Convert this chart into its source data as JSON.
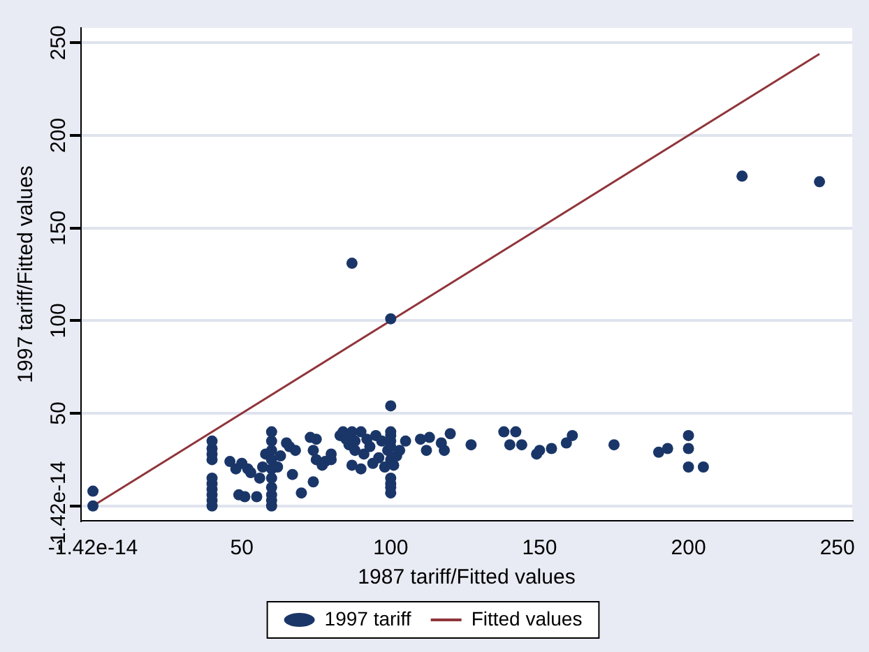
{
  "chart_data": {
    "type": "scatter",
    "xlabel": "1987 tariff/Fitted values",
    "ylabel": "1997 tariff/Fitted values",
    "xlim": [
      -4,
      255
    ],
    "xticks": [
      -1.42e-14,
      50,
      100,
      150,
      200,
      250
    ],
    "ylim": [
      -8,
      258
    ],
    "yticks": [
      -1.42e-14,
      50,
      100,
      150,
      200,
      250
    ],
    "grid": "y",
    "legend": "bottom",
    "marker": "circle",
    "series": [
      {
        "name": "1997 tariff",
        "color": "#1a3668",
        "type": "scatter",
        "x": [
          0,
          0,
          40,
          40,
          40,
          40,
          40,
          40,
          40,
          40,
          40,
          40,
          46,
          48,
          49,
          50,
          51,
          52,
          53,
          55,
          56,
          57,
          58,
          60,
          60,
          60,
          60,
          60,
          60,
          60,
          60,
          60,
          60,
          62,
          63,
          65,
          66,
          67,
          68,
          70,
          73,
          74,
          75,
          74,
          75,
          77,
          78,
          80,
          80,
          83,
          84,
          85,
          86,
          87,
          88,
          88,
          87,
          87,
          90,
          90,
          91,
          92,
          93,
          94,
          95,
          96,
          97,
          98,
          99,
          100,
          100,
          100,
          100,
          100,
          100,
          100,
          100,
          100,
          100,
          100,
          101,
          102,
          103,
          105,
          110,
          112,
          113,
          117,
          118,
          120,
          127,
          138,
          140,
          142,
          144,
          149,
          150,
          154,
          159,
          161,
          175,
          190,
          193,
          200,
          200,
          200,
          205,
          218,
          244
        ],
        "values": [
          0,
          8,
          0,
          3,
          6,
          9,
          12,
          15,
          25,
          28,
          31,
          35,
          24,
          20,
          6,
          23,
          5,
          20,
          18,
          5,
          15,
          21,
          28,
          0,
          3,
          6,
          10,
          15,
          20,
          25,
          30,
          35,
          40,
          21,
          27,
          34,
          32,
          17,
          30,
          7,
          37,
          30,
          36,
          13,
          25,
          22,
          24,
          25,
          28,
          38,
          40,
          36,
          33,
          40,
          30,
          35,
          131,
          22,
          20,
          40,
          28,
          36,
          32,
          23,
          38,
          26,
          35,
          21,
          30,
          101,
          54,
          40,
          38,
          35,
          32,
          25,
          15,
          12,
          10,
          7,
          22,
          27,
          30,
          35,
          36,
          30,
          37,
          34,
          30,
          39,
          33,
          40,
          33,
          40,
          33,
          28,
          30,
          31,
          34,
          38,
          33,
          29,
          31,
          38,
          31,
          21,
          21,
          178,
          175
        ]
      },
      {
        "name": "Fitted values",
        "color": "#90353b",
        "type": "line",
        "marker": "none",
        "line_style": "solid",
        "x": [
          0,
          244
        ],
        "values": [
          0,
          244
        ]
      }
    ]
  }
}
